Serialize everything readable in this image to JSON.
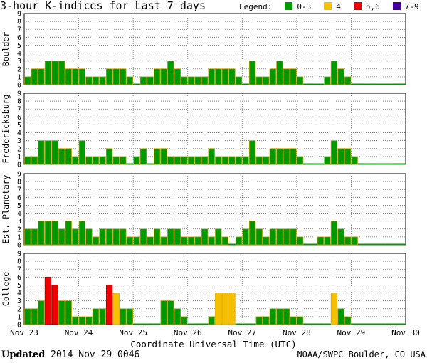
{
  "header": {
    "title": "3-hour K-indices for Last 7 days",
    "legend_label": "Legend:",
    "legend": [
      {
        "label": "0-3",
        "color": "#009900"
      },
      {
        "label": "4",
        "color": "#f5c000"
      },
      {
        "label": "5,6",
        "color": "#ee0000"
      },
      {
        "label": "7-9",
        "color": "#440099"
      }
    ]
  },
  "footer": {
    "updated_label": "Updated",
    "updated_value": "2014 Nov 29 0046",
    "source": "NOAA/SWPC Boulder, CO USA"
  },
  "chart_data": {
    "type": "bar",
    "xlabel": "Coordinate Universal Time (UTC)",
    "x_tick_labels": [
      "Nov 23",
      "Nov 24",
      "Nov 25",
      "Nov 26",
      "Nov 27",
      "Nov 28",
      "Nov 29",
      "Nov 30"
    ],
    "ylim": [
      0,
      9
    ],
    "y_ticks": [
      "0",
      "1",
      "2",
      "3",
      "4",
      "5",
      "6",
      "7",
      "8",
      "9"
    ],
    "grid": true,
    "series": [
      {
        "name": "Boulder",
        "values": [
          1,
          2,
          2,
          3,
          3,
          3,
          2,
          2,
          2,
          1,
          1,
          1,
          2,
          2,
          2,
          1,
          0,
          1,
          1,
          2,
          2,
          3,
          2,
          1,
          1,
          1,
          1,
          2,
          2,
          2,
          2,
          1,
          0,
          3,
          1,
          1,
          2,
          3,
          2,
          2,
          1,
          0,
          0,
          0,
          1,
          3,
          2,
          1,
          0,
          0,
          0,
          0,
          0,
          0,
          0,
          0
        ]
      },
      {
        "name": "Fredericksburg",
        "values": [
          1,
          1,
          3,
          3,
          3,
          2,
          2,
          1,
          3,
          1,
          1,
          1,
          2,
          1,
          1,
          0,
          1,
          2,
          0,
          2,
          2,
          1,
          1,
          1,
          1,
          1,
          1,
          2,
          1,
          1,
          1,
          1,
          1,
          3,
          1,
          1,
          2,
          2,
          2,
          2,
          1,
          0,
          0,
          0,
          1,
          3,
          2,
          2,
          1,
          0,
          0,
          0,
          0,
          0,
          0,
          0
        ]
      },
      {
        "name": "Est. Planetary",
        "values": [
          2,
          2,
          3,
          3,
          3,
          2,
          3,
          2,
          3,
          2,
          1,
          2,
          2,
          2,
          2,
          1,
          1,
          2,
          1,
          2,
          1,
          2,
          2,
          1,
          1,
          1,
          2,
          1,
          2,
          1,
          0,
          1,
          2,
          3,
          2,
          1,
          2,
          2,
          2,
          2,
          1,
          0,
          0,
          1,
          1,
          3,
          2,
          1,
          1,
          0,
          0,
          0,
          0,
          0,
          0,
          0
        ]
      },
      {
        "name": "College",
        "values": [
          2,
          2,
          3,
          6,
          5,
          3,
          3,
          1,
          1,
          1,
          2,
          2,
          5,
          4,
          2,
          2,
          0,
          0,
          0,
          0,
          3,
          3,
          2,
          1,
          0,
          0,
          0,
          1,
          4,
          4,
          4,
          0,
          0,
          0,
          1,
          1,
          2,
          2,
          2,
          1,
          1,
          0,
          0,
          0,
          0,
          4,
          2,
          1,
          0,
          0,
          0,
          0,
          0,
          0,
          0,
          0
        ]
      }
    ]
  }
}
